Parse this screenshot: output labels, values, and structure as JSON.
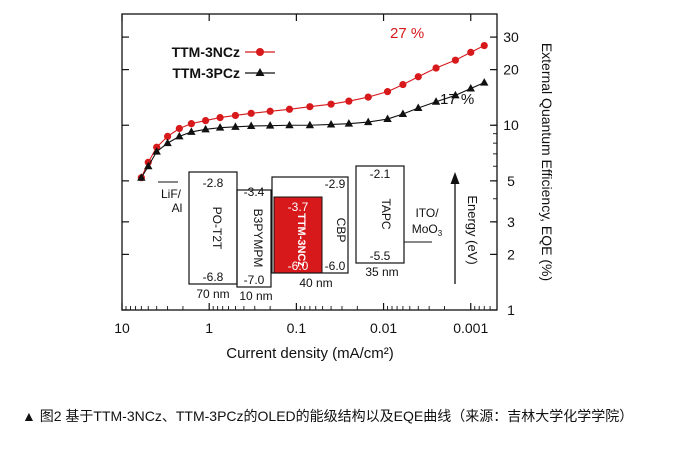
{
  "chart_data": {
    "type": "line",
    "x_axis": {
      "label": "Current density (mA/cm²)",
      "scale": "log",
      "range": [
        10,
        0.0005
      ],
      "tick_labels": [
        "10",
        "1",
        "0.1",
        "0.01",
        "0.001"
      ],
      "tick_values": [
        10,
        1,
        0.1,
        0.01,
        0.001
      ],
      "minor_tick_labels": [
        "0.01",
        "0.001"
      ]
    },
    "y_axis": {
      "label": "External Quantum Efficiency, EQE (%)",
      "scale": "log",
      "range": [
        1,
        40
      ],
      "tick_labels": [
        "1",
        "2",
        "3",
        "5",
        "10",
        "20",
        "30"
      ],
      "tick_values": [
        1,
        2,
        3,
        5,
        10,
        20,
        30
      ]
    },
    "series": [
      {
        "name": "TTM-3NCz",
        "color": "#d7191c",
        "marker": "circle",
        "x": [
          6.0,
          5.0,
          4.0,
          3.0,
          2.2,
          1.6,
          1.1,
          0.75,
          0.5,
          0.33,
          0.2,
          0.12,
          0.07,
          0.04,
          0.025,
          0.015,
          0.009,
          0.006,
          0.004,
          0.0025,
          0.0015,
          0.001,
          0.0007
        ],
        "y": [
          5.2,
          6.3,
          7.6,
          8.7,
          9.6,
          10.2,
          10.6,
          11.0,
          11.3,
          11.6,
          11.9,
          12.2,
          12.6,
          13.0,
          13.5,
          14.2,
          15.2,
          16.6,
          18.3,
          20.4,
          22.5,
          24.8,
          27
        ]
      },
      {
        "name": "TTM-3PCz",
        "color": "#111111",
        "marker": "triangle",
        "x": [
          6.0,
          5.0,
          4.0,
          3.0,
          2.2,
          1.6,
          1.1,
          0.75,
          0.5,
          0.33,
          0.2,
          0.12,
          0.07,
          0.04,
          0.025,
          0.015,
          0.009,
          0.006,
          0.004,
          0.0025,
          0.0015,
          0.001,
          0.0007
        ],
        "y": [
          5.2,
          6.0,
          7.2,
          8.0,
          8.7,
          9.2,
          9.5,
          9.7,
          9.8,
          9.9,
          9.95,
          10.0,
          10.0,
          10.1,
          10.2,
          10.4,
          10.8,
          11.5,
          12.4,
          13.4,
          14.5,
          15.8,
          17
        ]
      }
    ],
    "annotations": [
      "27 %",
      "17 %"
    ],
    "legend_position": "top-left",
    "inset": {
      "axis_label": "Energy (eV)",
      "layers": [
        {
          "name": "LiF/ Al",
          "top": "",
          "bottom": "",
          "thickness": "",
          "color": "none"
        },
        {
          "name": "PO-T2T",
          "top": "-2.8",
          "bottom": "-6.8",
          "thickness": "70 nm",
          "color": "none"
        },
        {
          "name": "B3PYMPM",
          "top": "-3.4",
          "bottom": "-7.0",
          "thickness": "10 nm",
          "color": "none"
        },
        {
          "name": "TTM-3NCz",
          "top": "-3.7",
          "bottom": "-6.0",
          "thickness": "",
          "color": "#d7191c"
        },
        {
          "name": "CBP",
          "top": "-2.9",
          "bottom": "-6.0",
          "thickness": "40 nm",
          "color": "none"
        },
        {
          "name": "TAPC",
          "top": "-2.1",
          "bottom": "-5.5",
          "thickness": "35 nm",
          "color": "none"
        },
        {
          "name": "ITO/ MoO3",
          "top": "",
          "bottom": "",
          "thickness": "",
          "color": "none"
        }
      ]
    }
  },
  "caption": "▲ 图2 基于TTM-3NCz、TTM-3PCz的OLED的能级结构以及EQE曲线（来源：吉林大学化学学院）"
}
